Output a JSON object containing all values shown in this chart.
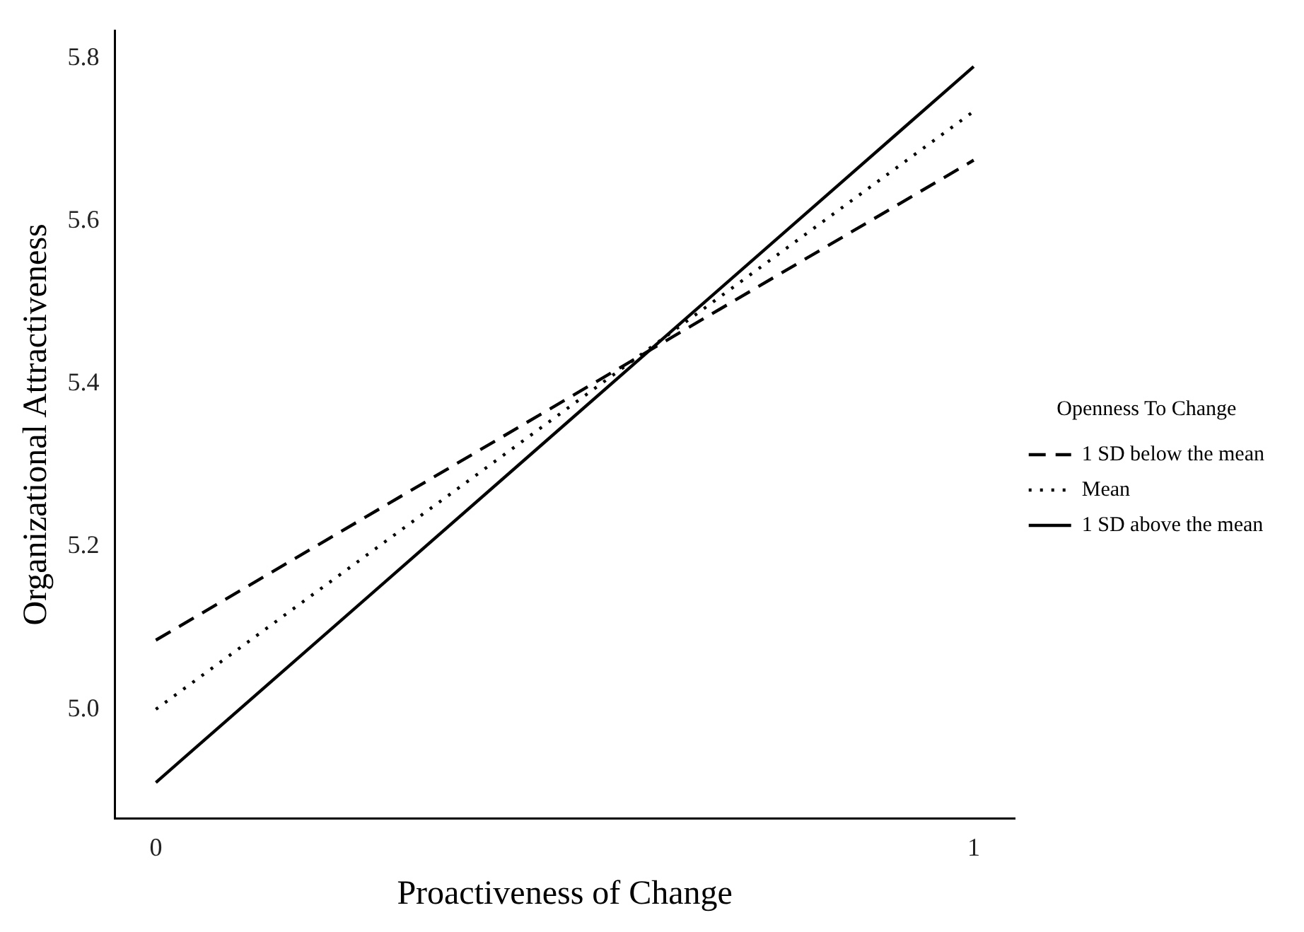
{
  "chart_data": {
    "type": "line",
    "xlabel": "Proactiveness of Change",
    "ylabel": "Organizational Attractiveness",
    "legend_title": "Openness To Change",
    "x": [
      0,
      1
    ],
    "series": [
      {
        "name": "1 SD below the mean",
        "color": "#000000",
        "line_style": "dashed",
        "values": [
          5.085,
          5.675
        ]
      },
      {
        "name": "Mean",
        "color": "#000000",
        "line_style": "dotted",
        "values": [
          5.0,
          5.735
        ]
      },
      {
        "name": "1 SD above the mean",
        "color": "#000000",
        "line_style": "solid",
        "values": [
          4.91,
          5.79
        ]
      }
    ],
    "xlim": [
      -0.05,
      1.05
    ],
    "xticks": [
      0,
      1
    ],
    "ylim": [
      4.866,
      5.834
    ],
    "yticks": [
      {
        "value": 5.0,
        "label": "5.0"
      },
      {
        "value": 5.2,
        "label": "5.2"
      },
      {
        "value": 5.4,
        "label": "5.4"
      },
      {
        "value": 5.6,
        "label": "5.6"
      },
      {
        "value": 5.8,
        "label": "5.8"
      }
    ],
    "grid": false,
    "legend": "right",
    "marker": "none"
  }
}
